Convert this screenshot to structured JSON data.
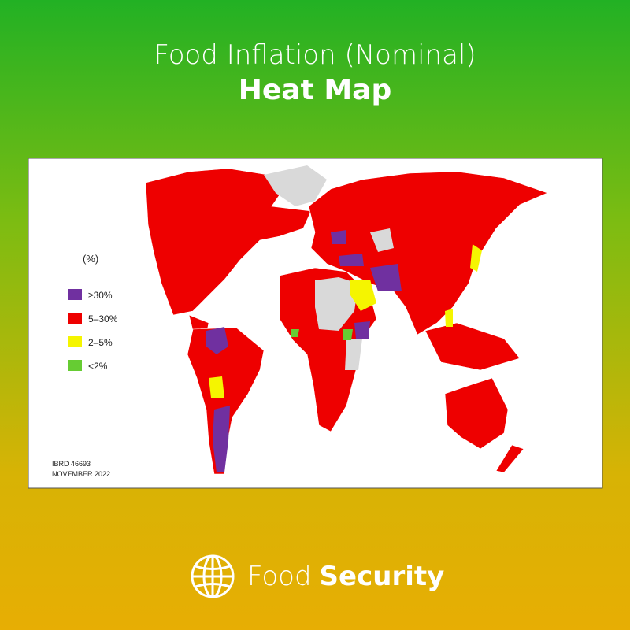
{
  "header": {
    "title_line_1": "Food Inflation (Nominal)",
    "title_line_2": "Heat Map"
  },
  "legend": {
    "title": "(%)",
    "items": [
      {
        "label": "≥30%",
        "color": "#7030a0"
      },
      {
        "label": "5–30%",
        "color": "#ee0000"
      },
      {
        "label": "2–5%",
        "color": "#f5f500"
      },
      {
        "label": "<2%",
        "color": "#66cc33"
      }
    ]
  },
  "credit": {
    "id": "IBRD 46693",
    "date": "NOVEMBER 2022"
  },
  "footer": {
    "light": "Food",
    "bold": "Security"
  }
}
